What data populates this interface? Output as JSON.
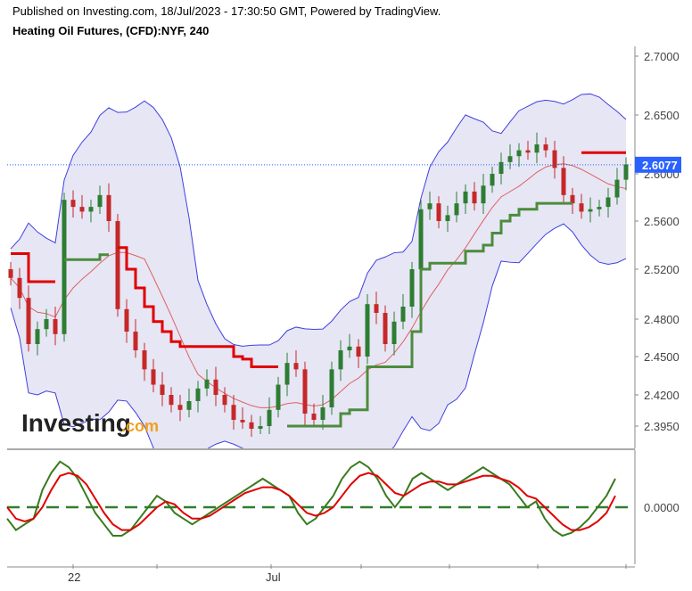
{
  "header": {
    "published": "Published on Investing.com, 18/Jul/2023 - 17:30:50 GMT, Powered by TradingView.",
    "title": "Heating Oil Futures, (CFD):NYF, 240"
  },
  "logo": {
    "main": "Investing",
    "suffix": ".com"
  },
  "colors": {
    "up": "#2e7d32",
    "down": "#c62828",
    "band_fill": "#e6e6f5",
    "band_line": "#3f3fe0",
    "sar_red": "#e00000",
    "sar_green": "#4c8c3c",
    "mid_line": "#e06060",
    "macd_green": "#3a7a1e",
    "macd_red": "#e00000",
    "zero_line": "#2f7f2f",
    "price_tag": "#2962ff"
  },
  "chart_data": [
    {
      "type": "candlestick",
      "title": "Heating Oil Futures, (CFD):NYF, 240",
      "ylim": [
        2.37,
        2.72
      ],
      "y_ticks": [
        "2.7000",
        "2.6500",
        "2.6000",
        "2.5600",
        "2.5200",
        "2.4800",
        "2.4500",
        "2.4200",
        "2.3950"
      ],
      "y_tick_values": [
        2.7,
        2.65,
        2.6,
        2.56,
        2.52,
        2.48,
        2.45,
        2.42,
        2.395
      ],
      "last_price": "2.6077",
      "last_price_value": 2.6077,
      "x_labels": [
        "22",
        "Jul"
      ],
      "x_label_positions": [
        7,
        29
      ],
      "bar_count": 70,
      "close": [
        2.513,
        2.497,
        2.46,
        2.472,
        2.48,
        2.468,
        2.578,
        2.572,
        2.568,
        2.572,
        2.582,
        2.56,
        2.488,
        2.47,
        2.455,
        2.44,
        2.428,
        2.42,
        2.412,
        2.408,
        2.415,
        2.425,
        2.432,
        2.42,
        2.412,
        2.4,
        2.398,
        2.392,
        2.395,
        2.408,
        2.428,
        2.445,
        2.44,
        2.405,
        2.4,
        2.41,
        2.44,
        2.455,
        2.458,
        2.45,
        2.492,
        2.485,
        2.46,
        2.478,
        2.49,
        2.52,
        2.57,
        2.575,
        2.56,
        2.565,
        2.575,
        2.585,
        2.575,
        2.59,
        2.6,
        2.61,
        2.615,
        2.62,
        2.618,
        2.625,
        2.62,
        2.605,
        2.582,
        2.575,
        2.568,
        2.57,
        2.572,
        2.58,
        2.595,
        2.608
      ],
      "open": [
        2.52,
        2.513,
        2.497,
        2.46,
        2.472,
        2.48,
        2.468,
        2.578,
        2.572,
        2.568,
        2.572,
        2.582,
        2.56,
        2.488,
        2.47,
        2.455,
        2.44,
        2.428,
        2.42,
        2.412,
        2.408,
        2.415,
        2.425,
        2.432,
        2.42,
        2.412,
        2.4,
        2.398,
        2.392,
        2.395,
        2.408,
        2.428,
        2.445,
        2.44,
        2.405,
        2.4,
        2.41,
        2.44,
        2.455,
        2.458,
        2.45,
        2.492,
        2.485,
        2.46,
        2.478,
        2.49,
        2.52,
        2.57,
        2.575,
        2.56,
        2.565,
        2.575,
        2.585,
        2.575,
        2.59,
        2.6,
        2.61,
        2.615,
        2.62,
        2.618,
        2.625,
        2.62,
        2.605,
        2.582,
        2.575,
        2.568,
        2.57,
        2.572,
        2.58,
        2.595
      ]
    },
    {
      "type": "line",
      "title": "",
      "ylim": [
        -0.1,
        0.1
      ],
      "y_ticks": [
        "0.0000"
      ],
      "y_tick_values": [
        0.0
      ],
      "series": [
        {
          "values": [
            -0.02,
            -0.04,
            -0.03,
            -0.02,
            0.03,
            0.06,
            0.08,
            0.07,
            0.05,
            0.02,
            -0.01,
            -0.03,
            -0.05,
            -0.05,
            -0.04,
            -0.02,
            0.0,
            0.02,
            0.01,
            -0.01,
            -0.02,
            -0.03,
            -0.02,
            -0.01,
            0.0,
            0.01,
            0.02,
            0.03,
            0.04,
            0.05,
            0.04,
            0.03,
            0.02,
            -0.01,
            -0.03,
            -0.02,
            0.0,
            0.02,
            0.05,
            0.07,
            0.08,
            0.07,
            0.05,
            0.02,
            0.0,
            0.02,
            0.05,
            0.06,
            0.05,
            0.04,
            0.03,
            0.04,
            0.05,
            0.06,
            0.07,
            0.06,
            0.05,
            0.04,
            0.02,
            0.0,
            0.01,
            -0.02,
            -0.04,
            -0.05,
            -0.045,
            -0.035,
            -0.02,
            0.0,
            0.02,
            0.05
          ]
        },
        {
          "values": [
            0.0,
            -0.02,
            -0.025,
            -0.02,
            0.0,
            0.03,
            0.055,
            0.06,
            0.055,
            0.04,
            0.015,
            -0.01,
            -0.03,
            -0.04,
            -0.04,
            -0.03,
            -0.015,
            0.0,
            0.01,
            0.005,
            -0.01,
            -0.02,
            -0.02,
            -0.015,
            -0.005,
            0.005,
            0.015,
            0.025,
            0.03,
            0.035,
            0.035,
            0.03,
            0.02,
            0.005,
            -0.01,
            -0.015,
            -0.01,
            0.0,
            0.02,
            0.04,
            0.055,
            0.06,
            0.055,
            0.04,
            0.025,
            0.02,
            0.03,
            0.04,
            0.045,
            0.045,
            0.04,
            0.04,
            0.045,
            0.05,
            0.055,
            0.055,
            0.05,
            0.045,
            0.035,
            0.02,
            0.015,
            0.0,
            -0.015,
            -0.03,
            -0.04,
            -0.04,
            -0.035,
            -0.025,
            -0.01,
            0.02
          ]
        }
      ]
    }
  ]
}
